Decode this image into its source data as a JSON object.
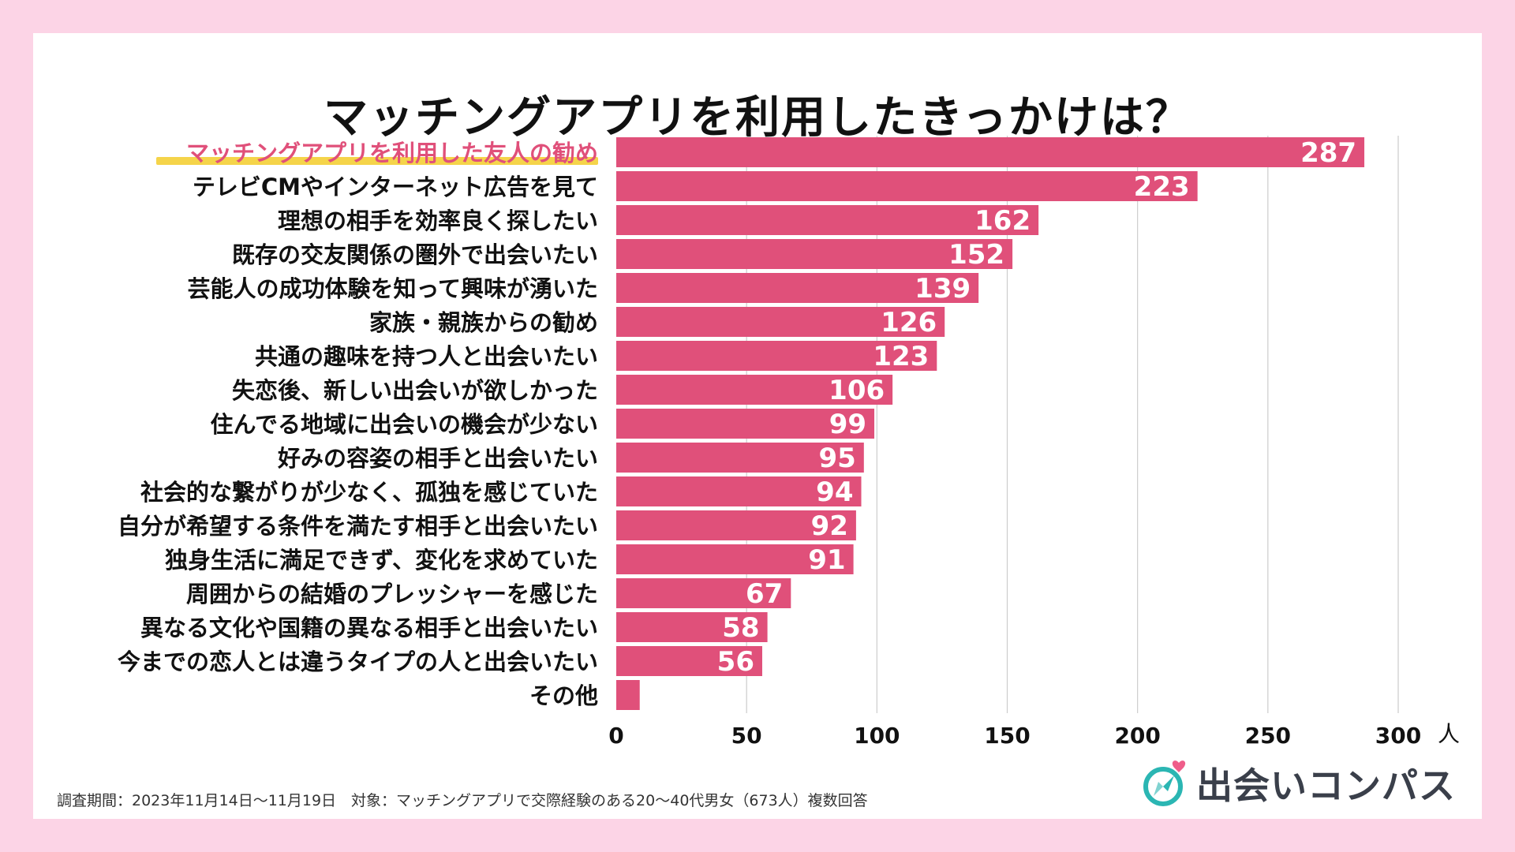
{
  "colors": {
    "bar": "#e0507a",
    "highlight_text": "#e0507a",
    "highlight_underline": "#f5d44a",
    "text": "#111111",
    "grid": "#cccccc",
    "brand_teal": "#2bb6b3",
    "brand_pink": "#ef5e8a"
  },
  "chart_data": {
    "type": "bar",
    "orientation": "horizontal",
    "title": "マッチングアプリを利用したきっかけは？",
    "unit": "人",
    "xlim": [
      0,
      300
    ],
    "ticks": [
      0,
      50,
      100,
      150,
      200,
      250,
      300
    ],
    "grid": true,
    "highlighted_category": "マッチングアプリを利用した友人の勧め",
    "categories": [
      "マッチングアプリを利用した友人の勧め",
      "テレビCMやインターネット広告を見て",
      "理想の相手を効率良く探したい",
      "既存の交友関係の圏外で出会いたい",
      "芸能人の成功体験を知って興味が湧いた",
      "家族・親族からの勧め",
      "共通の趣味を持つ人と出会いたい",
      "失恋後、新しい出会いが欲しかった",
      "住んでる地域に出会いの機会が少ない",
      "好みの容姿の相手と出会いたい",
      "社会的な繋がりが少なく、孤独を感じていた",
      "自分が希望する条件を満たす相手と出会いたい",
      "独身生活に満足できず、変化を求めていた",
      "周囲からの結婚のプレッシャーを感じた",
      "異なる文化や国籍の異なる相手と出会いたい",
      "今までの恋人とは違うタイプの人と出会いたい",
      "その他"
    ],
    "values": [
      287,
      223,
      162,
      152,
      139,
      126,
      123,
      106,
      99,
      95,
      94,
      92,
      91,
      67,
      58,
      56,
      9
    ],
    "value_labels": [
      "287",
      "223",
      "162",
      "152",
      "139",
      "126",
      "123",
      "106",
      "99",
      "95",
      "94",
      "92",
      "91",
      "67",
      "58",
      "56",
      ""
    ]
  },
  "footnote": "調査期間：2023年11月14日〜11月19日　対象：マッチングアプリで交際経験のある20〜40代男女（673人）複数回答",
  "brand": {
    "name": "出会いコンパス",
    "logo_icon": "compass-heart-icon"
  }
}
